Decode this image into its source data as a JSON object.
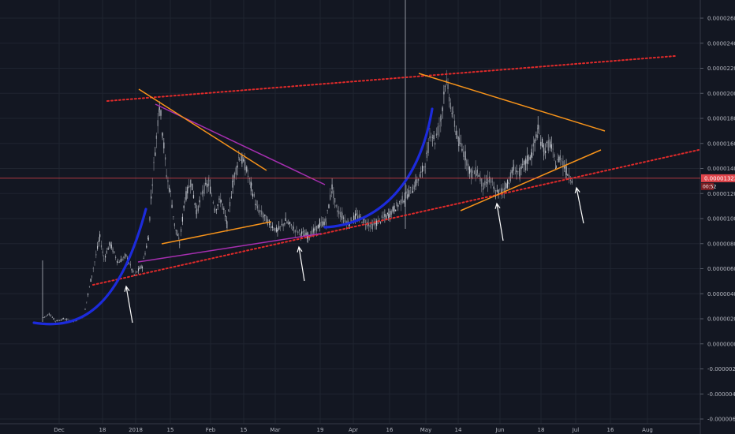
{
  "chart_data": {
    "type": "candlestick",
    "y_ticks": [
      "0.00002600",
      "0.00002400",
      "0.00002200",
      "0.00002000",
      "0.00001800",
      "0.00001600",
      "0.00001400",
      "0.00001200",
      "0.00001000",
      "0.00000800",
      "0.00000600",
      "0.00000400",
      "0.00000200",
      "0.00000000",
      "-0.00000200",
      "-0.00000400",
      "-0.00000600",
      "-0.00000800"
    ],
    "x_ticks": [
      "Dec",
      "18",
      "2018",
      "15",
      "Feb",
      "15",
      "Mar",
      "19",
      "Apr",
      "16",
      "May",
      "14",
      "Jun",
      "18",
      "Jul",
      "16",
      "Aug"
    ],
    "current_price_label": "0.00001322",
    "countdown_label": "00:52",
    "ylim": [
      -8.45e-06,
      2.75e-05
    ],
    "colors": {
      "background": "#131722",
      "candle_up": "#c8ccd4",
      "candle_down": "#8a8e97",
      "grid": "#1f2430",
      "price_line": "#e0454b",
      "resistance_dots": "#e02a2a",
      "triangle_orange": "#f7931a",
      "triangle_purple": "#a62fb0",
      "curve_blue": "#1c2bdc",
      "arrow": "#ffffff"
    },
    "price_series": [
      [
        0,
        2.1e-06
      ],
      [
        6,
        2.4e-06
      ],
      [
        12,
        1.8e-06
      ],
      [
        20,
        2e-06
      ],
      [
        30,
        1.8e-06
      ],
      [
        40,
        2.2e-06
      ],
      [
        48,
        5.5e-06
      ],
      [
        56,
        8.5e-06
      ],
      [
        60,
        6.8e-06
      ],
      [
        66,
        8e-06
      ],
      [
        74,
        6.5e-06
      ],
      [
        82,
        7e-06
      ],
      [
        90,
        5.5e-06
      ],
      [
        98,
        6.2e-06
      ],
      [
        104,
        8.5e-06
      ],
      [
        108,
        1.3e-05
      ],
      [
        112,
        1.65e-05
      ],
      [
        115,
        1.92e-05
      ],
      [
        118,
        1.7e-05
      ],
      [
        122,
        1.35e-05
      ],
      [
        126,
        1.2e-05
      ],
      [
        130,
        9.5e-06
      ],
      [
        135,
        8e-06
      ],
      [
        140,
        1.15e-05
      ],
      [
        146,
        1.3e-05
      ],
      [
        152,
        1.05e-05
      ],
      [
        158,
        1.22e-05
      ],
      [
        164,
        1.28e-05
      ],
      [
        170,
        1.08e-05
      ],
      [
        176,
        1.15e-05
      ],
      [
        182,
        9.5e-06
      ],
      [
        188,
        1.3e-05
      ],
      [
        194,
        1.5e-05
      ],
      [
        200,
        1.42e-05
      ],
      [
        206,
        1.25e-05
      ],
      [
        212,
        1.08e-05
      ],
      [
        218,
        1.02e-05
      ],
      [
        224,
        9.6e-06
      ],
      [
        232,
        9e-06
      ],
      [
        240,
        9.8e-06
      ],
      [
        248,
        9.2e-06
      ],
      [
        256,
        8.8e-06
      ],
      [
        262,
        8.6e-06
      ],
      [
        268,
        9e-06
      ],
      [
        274,
        9.5e-06
      ],
      [
        280,
        9.8e-06
      ],
      [
        286,
        1.25e-05
      ],
      [
        290,
        1.08e-05
      ],
      [
        296,
        1.02e-05
      ],
      [
        302,
        9.6e-06
      ],
      [
        310,
        1.02e-05
      ],
      [
        318,
        9.8e-06
      ],
      [
        326,
        9.4e-06
      ],
      [
        334,
        9.9e-06
      ],
      [
        342,
        1.03e-05
      ],
      [
        350,
        1.1e-05
      ],
      [
        358,
        1.17e-05
      ],
      [
        366,
        1.24e-05
      ],
      [
        374,
        1.35e-05
      ],
      [
        380,
        1.5e-05
      ],
      [
        384,
        1.7e-05
      ],
      [
        388,
        1.62e-05
      ],
      [
        394,
        1.8e-05
      ],
      [
        398,
        2.1e-05
      ],
      [
        402,
        1.98e-05
      ],
      [
        406,
        1.8e-05
      ],
      [
        412,
        1.6e-05
      ],
      [
        418,
        1.5e-05
      ],
      [
        424,
        1.35e-05
      ],
      [
        430,
        1.38e-05
      ],
      [
        436,
        1.25e-05
      ],
      [
        442,
        1.32e-05
      ],
      [
        448,
        1.2e-05
      ],
      [
        454,
        1.22e-05
      ],
      [
        460,
        1.28e-05
      ],
      [
        466,
        1.4e-05
      ],
      [
        472,
        1.36e-05
      ],
      [
        478,
        1.45e-05
      ],
      [
        484,
        1.52e-05
      ],
      [
        490,
        1.7e-05
      ],
      [
        496,
        1.55e-05
      ],
      [
        502,
        1.6e-05
      ],
      [
        508,
        1.42e-05
      ],
      [
        512,
        1.5e-05
      ],
      [
        518,
        1.38e-05
      ],
      [
        524,
        1.32e-05
      ]
    ],
    "annotations": {
      "resistance_line": [
        [
          136,
          128
        ],
        [
          856,
          71
        ]
      ],
      "support_line": [
        [
          118,
          361
        ],
        [
          886,
          190
        ]
      ],
      "price_line_y": 1.322e-05,
      "orange_segments": [
        [
          [
            176,
            113
          ],
          [
            338,
            216
          ]
        ],
        [
          [
            205,
            309
          ],
          [
            344,
            281
          ]
        ],
        [
          [
            531,
            93
          ],
          [
            767,
            166
          ]
        ],
        [
          [
            584,
            267
          ],
          [
            762,
            190
          ]
        ]
      ],
      "purple_segments": [
        [
          [
            197,
            132
          ],
          [
            412,
            234
          ]
        ],
        [
          [
            175,
            332
          ],
          [
            407,
            296
          ]
        ]
      ],
      "blue_curves": [
        "M43,409 C100,418 150,395 185,265",
        "M412,288 C470,285 530,245 548,138"
      ],
      "arrows": [
        [
          [
            168,
            409
          ],
          [
            160,
            363
          ]
        ],
        [
          [
            386,
            356
          ],
          [
            379,
            313
          ]
        ],
        [
          [
            638,
            305
          ],
          [
            630,
            258
          ]
        ],
        [
          [
            740,
            283
          ],
          [
            731,
            238
          ]
        ]
      ],
      "spike": [
        [
          514,
          0
        ],
        [
          514,
          290
        ]
      ],
      "spike2": [
        [
          54,
          330
        ],
        [
          54,
          408
        ]
      ]
    }
  }
}
